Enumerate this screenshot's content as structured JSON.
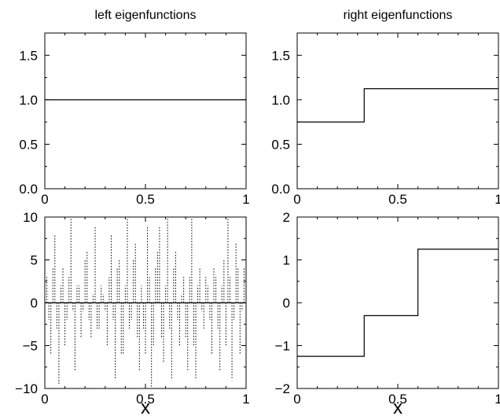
{
  "chart_data": [
    {
      "type": "line",
      "title": "left eigenfunctions",
      "xlabel": "",
      "ylabel": "",
      "xlim": [
        0,
        1
      ],
      "ylim": [
        0,
        1.75
      ],
      "xticks": [
        0,
        0.5,
        1
      ],
      "xtick_labels": [
        "0",
        "0.5",
        "1"
      ],
      "yticks": [
        0,
        0.5,
        1,
        1.5
      ],
      "ytick_labels": [
        "0.0",
        "0.5",
        "1.0",
        "1.5"
      ],
      "series": [
        {
          "style": "solid",
          "x": [
            0,
            1
          ],
          "y": [
            1.0,
            1.0
          ]
        }
      ]
    },
    {
      "type": "line",
      "title": "right eigenfunctions",
      "xlabel": "",
      "ylabel": "",
      "xlim": [
        0,
        1
      ],
      "ylim": [
        0,
        1.75
      ],
      "xticks": [
        0,
        0.5,
        1
      ],
      "xtick_labels": [
        "0",
        "0.5",
        "1"
      ],
      "yticks": [
        0,
        0.5,
        1,
        1.5
      ],
      "ytick_labels": [
        "0.0",
        "0.5",
        "1.0",
        "1.5"
      ],
      "series": [
        {
          "style": "solid",
          "x": [
            0,
            0.333,
            0.333,
            1
          ],
          "y": [
            0.75,
            0.75,
            1.125,
            1.125
          ]
        }
      ]
    },
    {
      "type": "line",
      "title": "",
      "xlabel": "x",
      "ylabel": "",
      "xlim": [
        0,
        1
      ],
      "ylim": [
        -10,
        10
      ],
      "xticks": [
        0,
        0.5,
        1
      ],
      "xtick_labels": [
        "0",
        "0.5",
        "1"
      ],
      "yticks": [
        -10,
        -5,
        0,
        5,
        10
      ],
      "ytick_labels": [
        "−10",
        "−5",
        "0",
        "5",
        "10"
      ],
      "series": [
        {
          "style": "dotted",
          "x": [
            0.01,
            0.03,
            0.05,
            0.07,
            0.09,
            0.11,
            0.13,
            0.15,
            0.17,
            0.19,
            0.21,
            0.23,
            0.25,
            0.27,
            0.29,
            0.31,
            0.33,
            0.35,
            0.37,
            0.39,
            0.41,
            0.43,
            0.45,
            0.47,
            0.49,
            0.51,
            0.53,
            0.55,
            0.57,
            0.59,
            0.61,
            0.63,
            0.65,
            0.67,
            0.69,
            0.71,
            0.73,
            0.75,
            0.77,
            0.79,
            0.81,
            0.83,
            0.85,
            0.87,
            0.89,
            0.91,
            0.93,
            0.95,
            0.97,
            0.99
          ],
          "y": [
            3,
            -6,
            8,
            -9.5,
            4,
            -2,
            10,
            -8,
            2,
            -1,
            6,
            -4,
            9,
            -3,
            1,
            -5,
            8,
            -9,
            5,
            -6,
            10,
            -2,
            7,
            -8,
            -3,
            9,
            -10,
            4,
            9,
            -7,
            10,
            -9,
            6,
            -5,
            3,
            -8,
            10,
            -9,
            4,
            -3,
            2,
            -6,
            3,
            -8,
            5,
            10,
            -9,
            7,
            -6,
            4
          ]
        },
        {
          "style": "dotted",
          "x": [
            0.02,
            0.04,
            0.06,
            0.08,
            0.1,
            0.12,
            0.14,
            0.16,
            0.18,
            0.2,
            0.22,
            0.24,
            0.26,
            0.28,
            0.3,
            0.32,
            0.34,
            0.36,
            0.38,
            0.4,
            0.42,
            0.44,
            0.46,
            0.48,
            0.5,
            0.52,
            0.54,
            0.56,
            0.58,
            0.6,
            0.62,
            0.64,
            0.66,
            0.68,
            0.7,
            0.72,
            0.74,
            0.76,
            0.78,
            0.8,
            0.82,
            0.84,
            0.86,
            0.88,
            0.9,
            0.92,
            0.94,
            0.96,
            0.98
          ],
          "y": [
            -2,
            4,
            -3,
            2,
            -5,
            3,
            -1,
            2,
            -4,
            5,
            -2,
            1,
            -3,
            2,
            -1,
            3,
            -2,
            4,
            -6,
            2,
            -3,
            5,
            -4,
            2,
            -6,
            3,
            -5,
            6,
            -4,
            2,
            -3,
            4,
            -2,
            1,
            -4,
            3,
            -5,
            2,
            -1,
            3,
            -2,
            4,
            -3,
            2,
            -5,
            3,
            -2,
            4,
            -1
          ]
        },
        {
          "style": "solid",
          "x": [
            0,
            1
          ],
          "y": [
            0,
            0
          ]
        }
      ]
    },
    {
      "type": "line",
      "title": "",
      "xlabel": "x",
      "ylabel": "",
      "xlim": [
        0,
        1
      ],
      "ylim": [
        -2,
        2
      ],
      "xticks": [
        0,
        0.5,
        1
      ],
      "xtick_labels": [
        "0",
        "0.5",
        "1"
      ],
      "yticks": [
        -2,
        -1,
        0,
        1,
        2
      ],
      "ytick_labels": [
        "−2",
        "−1",
        "0",
        "1",
        "2"
      ],
      "series": [
        {
          "style": "solid",
          "x": [
            0,
            0.333,
            0.333,
            0.6,
            0.6,
            1
          ],
          "y": [
            -1.25,
            -1.25,
            -0.3,
            -0.3,
            1.25,
            1.25
          ]
        }
      ]
    }
  ]
}
